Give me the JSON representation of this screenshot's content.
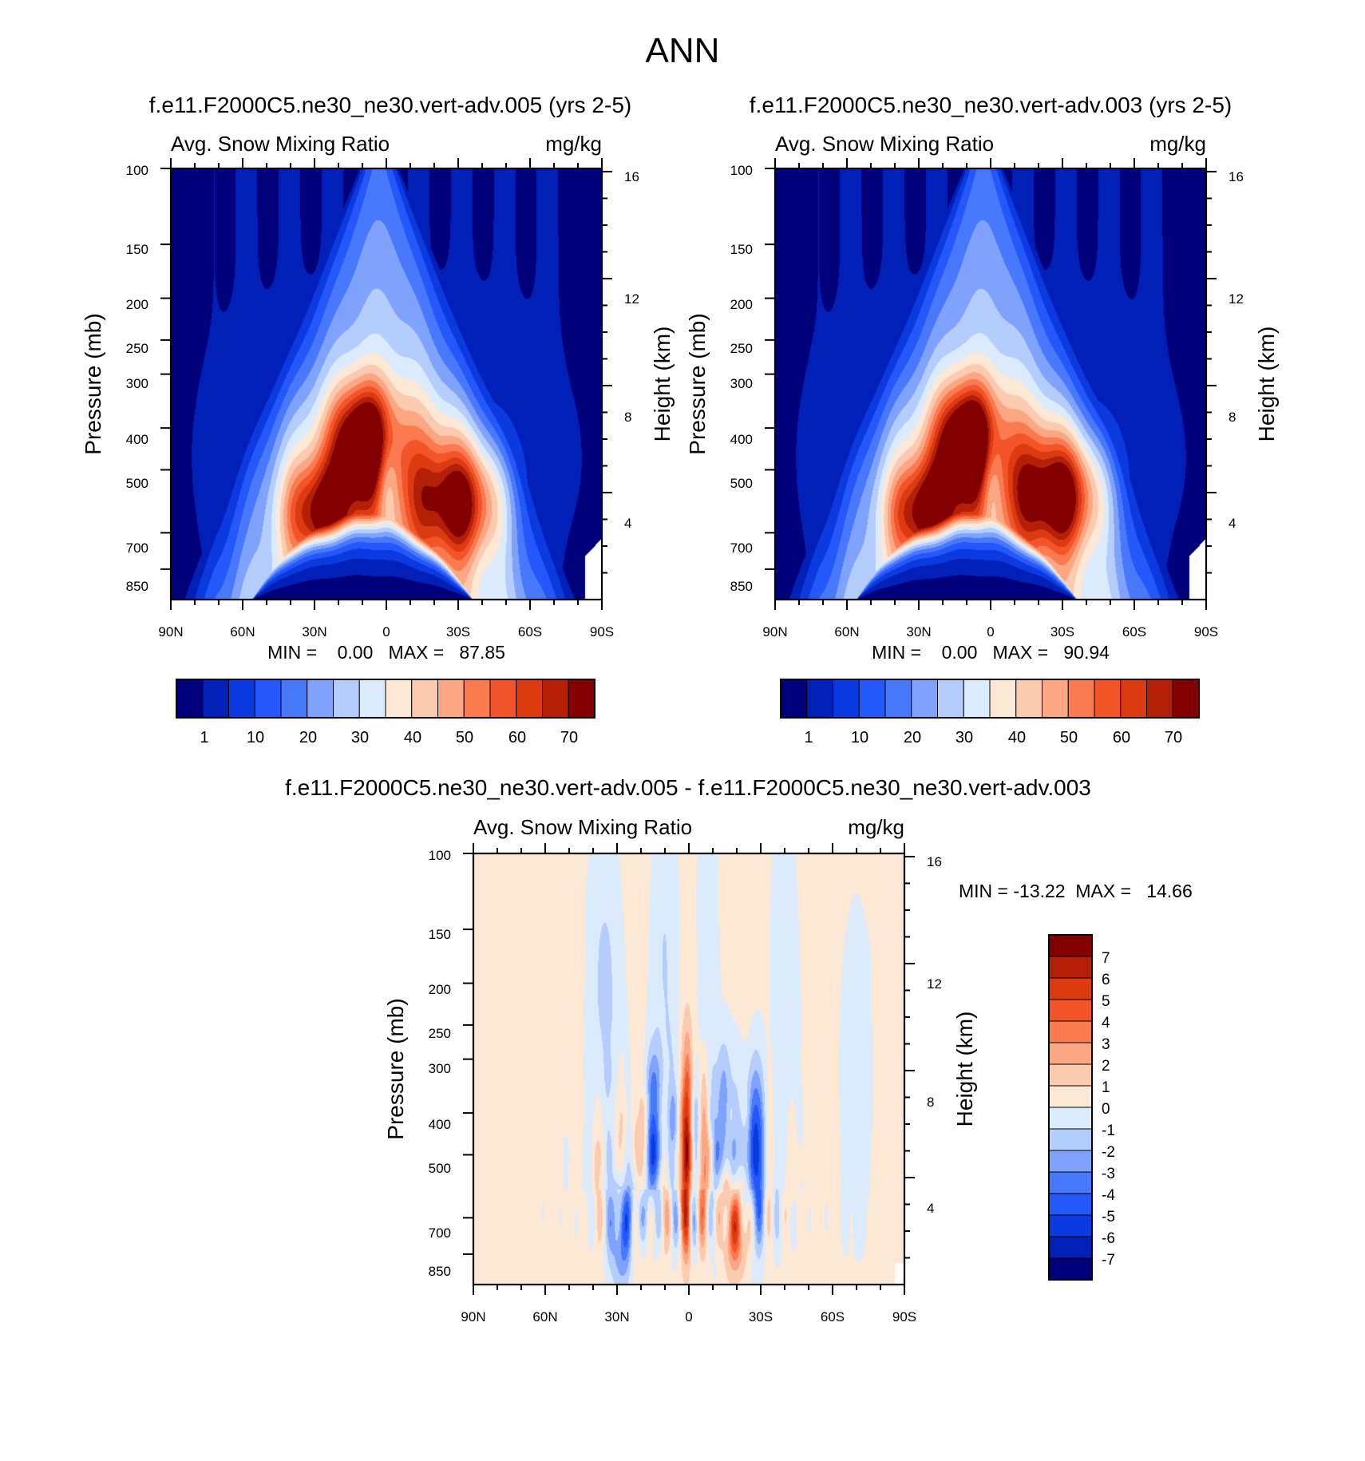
{
  "figure_title": "ANN",
  "colors": {
    "abs_scale": [
      "#00007a",
      "#0020b8",
      "#0a3ae0",
      "#2458fa",
      "#4879fd",
      "#7fa3fd",
      "#b4cdfd",
      "#dcebfc",
      "#fde8d6",
      "#fccaae",
      "#fca784",
      "#fb7b51",
      "#f4542a",
      "#dc3b12",
      "#b41f08",
      "#830000"
    ],
    "diff_scale": [
      "#00007a",
      "#0020b8",
      "#0a3ae0",
      "#2458fa",
      "#4879fd",
      "#7fa3fd",
      "#b4cdfd",
      "#dcebfc",
      "#fde8d6",
      "#fccaae",
      "#fca784",
      "#fb7b51",
      "#f4542a",
      "#dc3b12",
      "#b41f08",
      "#830000"
    ],
    "white": "#ffffff"
  },
  "chart_data": [
    {
      "id": "panel-1",
      "type": "heatmap",
      "title": "f.e11.F2000C5.ne30_ne30.vert-adv.005 (yrs 2-5)",
      "left_string": "Avg. Snow Mixing Ratio",
      "right_string": "mg/kg",
      "ylabel": "Pressure (mb)",
      "y2label": "Height (km)",
      "xlim": [
        90,
        -90
      ],
      "ylim_mb": [
        1000,
        100
      ],
      "x_ticks": [
        {
          "v": 90,
          "label": "90N"
        },
        {
          "v": 60,
          "label": "60N"
        },
        {
          "v": 30,
          "label": "30N"
        },
        {
          "v": 0,
          "label": "0"
        },
        {
          "v": -30,
          "label": "30S"
        },
        {
          "v": -60,
          "label": "60S"
        },
        {
          "v": -90,
          "label": "90S"
        }
      ],
      "y_ticks": [
        "100",
        "150",
        "200",
        "250",
        "300",
        "400",
        "500",
        "700",
        "850"
      ],
      "y2_ticks": [
        "16",
        "12",
        "8",
        "4"
      ],
      "min_max": "MIN =    0.00   MAX =   87.85",
      "levels": [
        1,
        5,
        10,
        15,
        20,
        25,
        30,
        35,
        40,
        45,
        50,
        55,
        60,
        65,
        70
      ],
      "colorbar_labels": [
        "1",
        "10",
        "20",
        "30",
        "40",
        "50",
        "60",
        "70"
      ],
      "field_summary": {
        "peak_nh": {
          "lat": 10,
          "p_mb": 430,
          "value": 87.85
        },
        "peak_nh_low": {
          "lat": 28,
          "p_mb": 630,
          "value": 78
        },
        "peak_sh": {
          "lat": -30,
          "p_mb": 600,
          "value": 82
        },
        "equator_notch": {
          "lat": 0,
          "p_mb": 520,
          "value": 50
        },
        "lowlevel_minimum": {
          "lat": 10,
          "p_mb": 880,
          "value": 0.5
        },
        "upper_background": {
          "p_mb": 150,
          "value": 1
        }
      }
    },
    {
      "id": "panel-2",
      "type": "heatmap",
      "title": "f.e11.F2000C5.ne30_ne30.vert-adv.003 (yrs 2-5)",
      "left_string": "Avg. Snow Mixing Ratio",
      "right_string": "mg/kg",
      "ylabel": "Pressure (mb)",
      "y2label": "Height (km)",
      "xlim": [
        90,
        -90
      ],
      "ylim_mb": [
        1000,
        100
      ],
      "x_ticks": [
        {
          "v": 90,
          "label": "90N"
        },
        {
          "v": 60,
          "label": "60N"
        },
        {
          "v": 30,
          "label": "30N"
        },
        {
          "v": 0,
          "label": "0"
        },
        {
          "v": -30,
          "label": "30S"
        },
        {
          "v": -60,
          "label": "60S"
        },
        {
          "v": -90,
          "label": "90S"
        }
      ],
      "y_ticks": [
        "100",
        "150",
        "200",
        "250",
        "300",
        "400",
        "500",
        "700",
        "850"
      ],
      "y2_ticks": [
        "16",
        "12",
        "8",
        "4"
      ],
      "min_max": "MIN =    0.00   MAX =   90.94",
      "levels": [
        1,
        5,
        10,
        15,
        20,
        25,
        30,
        35,
        40,
        45,
        50,
        55,
        60,
        65,
        70
      ],
      "colorbar_labels": [
        "1",
        "10",
        "20",
        "30",
        "40",
        "50",
        "60",
        "70"
      ],
      "field_summary": {
        "peak_nh": {
          "lat": 10,
          "p_mb": 430,
          "value": 90.94
        },
        "peak_nh_low": {
          "lat": 28,
          "p_mb": 630,
          "value": 80
        },
        "peak_sh": {
          "lat": -28,
          "p_mb": 580,
          "value": 85
        },
        "equator_notch": {
          "lat": 0,
          "p_mb": 520,
          "value": 45
        },
        "lowlevel_minimum": {
          "lat": 10,
          "p_mb": 880,
          "value": 0.5
        },
        "upper_background": {
          "p_mb": 150,
          "value": 1
        }
      }
    },
    {
      "id": "panel-diff",
      "type": "heatmap",
      "title": "f.e11.F2000C5.ne30_ne30.vert-adv.005 - f.e11.F2000C5.ne30_ne30.vert-adv.003",
      "left_string": "Avg. Snow Mixing Ratio",
      "right_string": "mg/kg",
      "ylabel": "Pressure (mb)",
      "y2label": "Height (km)",
      "xlim": [
        90,
        -90
      ],
      "ylim_mb": [
        1000,
        100
      ],
      "x_ticks": [
        {
          "v": 90,
          "label": "90N"
        },
        {
          "v": 60,
          "label": "60N"
        },
        {
          "v": 30,
          "label": "30N"
        },
        {
          "v": 0,
          "label": "0"
        },
        {
          "v": -30,
          "label": "30S"
        },
        {
          "v": -60,
          "label": "60S"
        },
        {
          "v": -90,
          "label": "90S"
        }
      ],
      "y_ticks": [
        "100",
        "150",
        "200",
        "250",
        "300",
        "400",
        "500",
        "700",
        "850"
      ],
      "y2_ticks": [
        "16",
        "12",
        "8",
        "4"
      ],
      "min_max": "MIN = -13.22  MAX =   14.66",
      "levels": [
        -7,
        -6,
        -5,
        -4,
        -3,
        -2,
        -1,
        0,
        1,
        2,
        3,
        4,
        5,
        6,
        7
      ],
      "colorbar_labels": [
        "7",
        "6",
        "5",
        "4",
        "3",
        "2",
        "1",
        "0",
        "-1",
        "-2",
        "-3",
        "-4",
        "-5",
        "-6",
        "-7"
      ],
      "field_summary": {
        "background": {
          "value": 0.3
        },
        "min": {
          "lat": 28,
          "p_mb": 820,
          "value": -13.22
        },
        "max": {
          "lat": -22,
          "p_mb": 790,
          "value": 14.66
        },
        "equator_column_positive": {
          "lat": 0,
          "p_mb": 550,
          "value": 6
        },
        "sh_column_negative": {
          "lat": -28,
          "p_mb": 560,
          "value": -5
        }
      }
    }
  ]
}
